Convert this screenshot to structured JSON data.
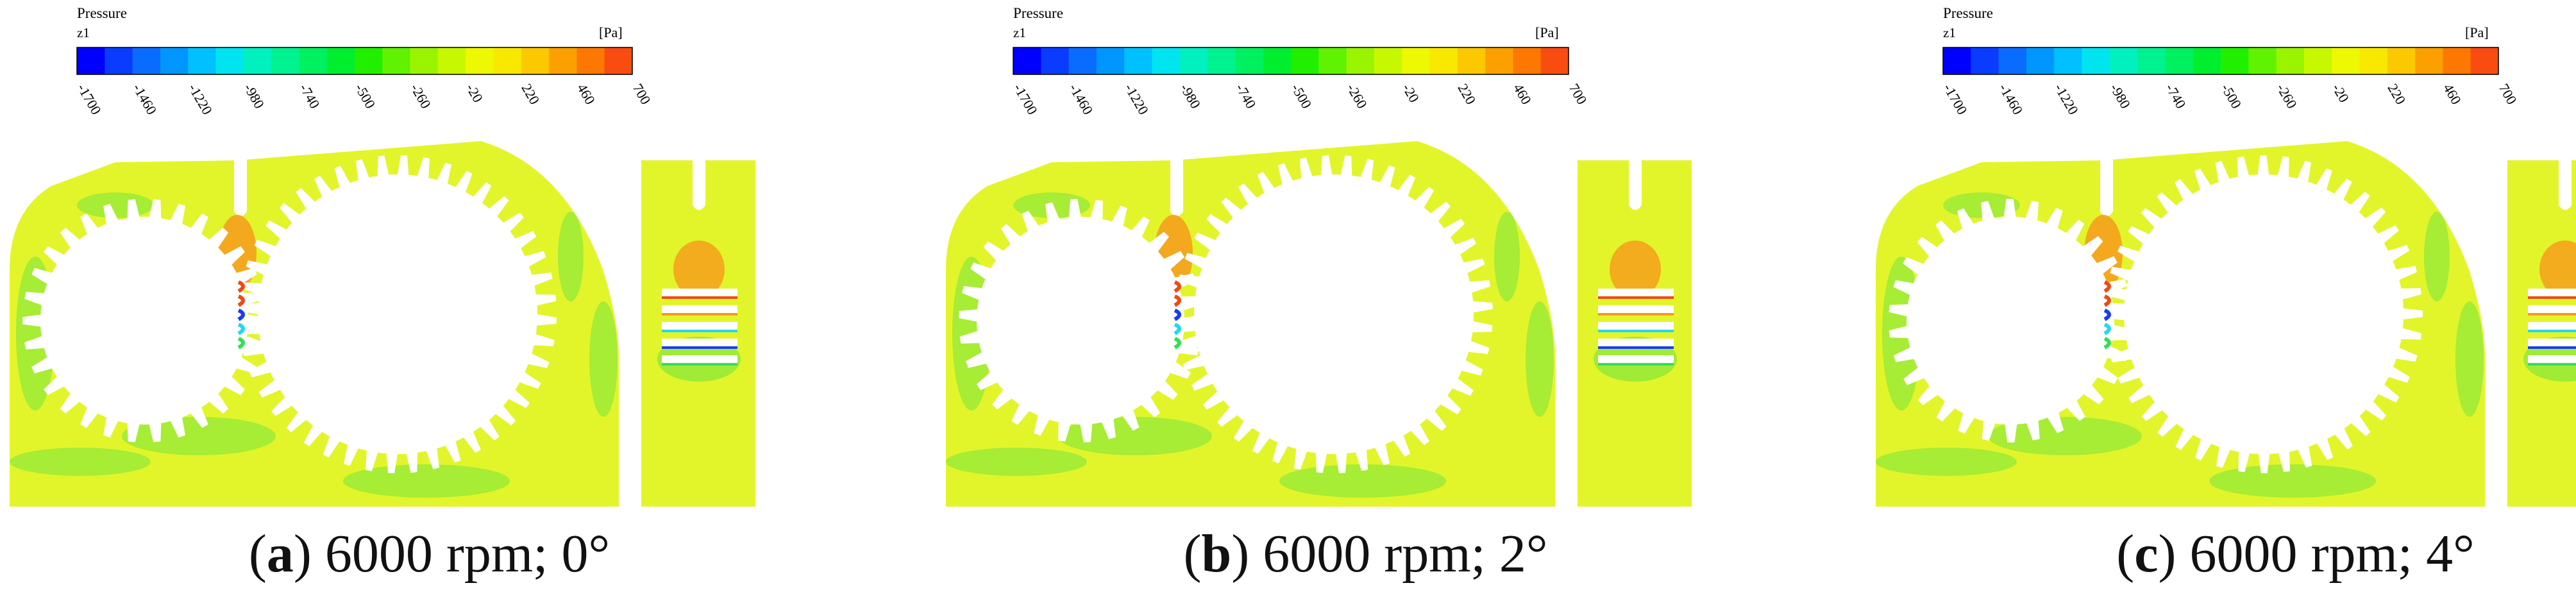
{
  "colorbar": {
    "title": "Pressure",
    "subtitle": "z1",
    "unit": "[Pa]",
    "ticks": [
      "-1700",
      "-1460",
      "-1220",
      "-980",
      "-740",
      "-500",
      "-260",
      "-20",
      "220",
      "460",
      "700"
    ],
    "colors": [
      "#0000ff",
      "#0a3cff",
      "#0a6cff",
      "#0096ff",
      "#00c0ff",
      "#00e4f0",
      "#00f0c0",
      "#00f290",
      "#00f060",
      "#00ee2e",
      "#20f000",
      "#60f200",
      "#9af400",
      "#c8f800",
      "#eef800",
      "#f8e800",
      "#fcc800",
      "#fca000",
      "#fc7800",
      "#f84c10"
    ]
  },
  "colors": {
    "field": "#e2f52a",
    "field_green": "#8ee83a",
    "field_green_light": "#b8ef35",
    "orange": "#f79a1c",
    "red": "#f04a12",
    "deep_blue": "#1a3cf0",
    "cyan": "#22d8f0",
    "green": "#32e050",
    "white": "#ffffff"
  },
  "panels": [
    {
      "letter": "a",
      "text": "6000 rpm; 0°",
      "open_paren": "(",
      "close_paren": ")"
    },
    {
      "letter": "b",
      "text": "6000 rpm; 2°",
      "open_paren": "(",
      "close_paren": ")"
    },
    {
      "letter": "c",
      "text": "6000 rpm; 4°",
      "open_paren": "(",
      "close_paren": ")"
    }
  ]
}
